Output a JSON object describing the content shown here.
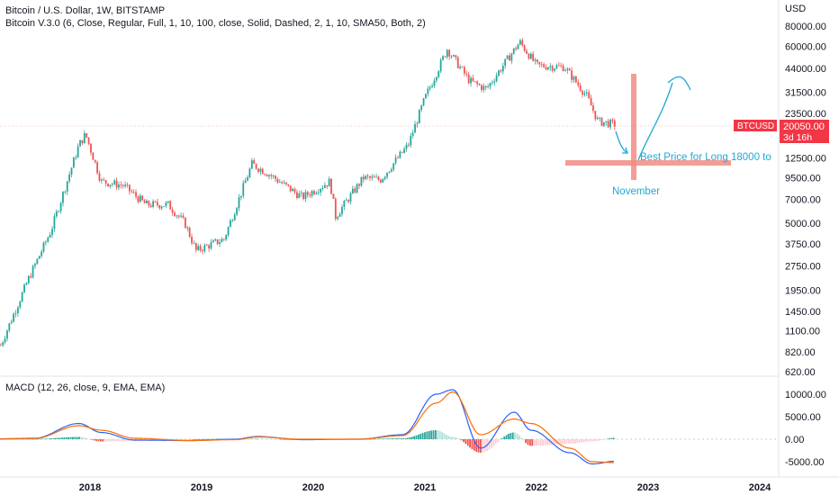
{
  "header": {
    "title": "Bitcoin / U.S. Dollar, 1W, BITSTAMP",
    "indicator": "Bitcoin V.3.0 (6, Close, Regular, Full, 1, 10, 100, close, Solid, Dashed, 2, 1, 10, SMA50, Both, 2)"
  },
  "price_axis": {
    "unit": "USD",
    "ticks": [
      "80000.00",
      "60000.00",
      "44000.00",
      "31500.00",
      "23500.00",
      "12500.00",
      "9500.00",
      "7000.00",
      "5000.00",
      "3750.00",
      "2750.00",
      "1950.00",
      "1450.00",
      "1100.00",
      "820.00",
      "620.00"
    ],
    "tick_values": [
      80000,
      60000,
      44000,
      31500,
      23500,
      12500,
      9500,
      7000,
      5000,
      3750,
      2750,
      1950,
      1450,
      1100,
      820,
      620
    ],
    "scale": "log"
  },
  "time_axis": {
    "ticks": [
      "2018",
      "2019",
      "2020",
      "2021",
      "2022",
      "2023",
      "2024"
    ]
  },
  "last_price": {
    "symbol": "BTCUSD",
    "price": "20050.00",
    "countdown": "3d 16h",
    "color": "#f23645"
  },
  "annotations": {
    "best_price": "Best Price for Long 18000 to",
    "month": "November",
    "line_color": "#f28b82",
    "arrow_color": "#21a7d6"
  },
  "macd": {
    "label": "MACD (12, 26, close, 9, EMA, EMA)",
    "ticks": [
      "10000.00",
      "5000.00",
      "0.00",
      "-5000.00"
    ],
    "tick_values": [
      10000,
      5000,
      0,
      -5000
    ],
    "macd_color": "#2962ff",
    "signal_color": "#ff6d00"
  },
  "colors": {
    "up": "#26a69a",
    "down": "#ef5350"
  },
  "chart_data": {
    "type": "candlestick",
    "symbol": "BTCUSD",
    "interval": "1W",
    "x": [
      2017.2,
      2017.45,
      2017.65,
      2017.9,
      2017.96,
      2018.1,
      2018.3,
      2018.5,
      2018.7,
      2018.85,
      2018.95,
      2019.2,
      2019.45,
      2019.6,
      2019.9,
      2020.15,
      2020.2,
      2020.45,
      2020.6,
      2020.85,
      2021.0,
      2021.2,
      2021.4,
      2021.55,
      2021.85,
      2022.0,
      2022.25,
      2022.45,
      2022.55,
      2022.7
    ],
    "price": [
      900,
      2300,
      4500,
      15000,
      17500,
      9000,
      8500,
      6500,
      6500,
      5000,
      3400,
      4000,
      11500,
      10000,
      7200,
      9000,
      5500,
      9500,
      9200,
      15000,
      29000,
      58000,
      37000,
      33000,
      64000,
      46000,
      45000,
      30000,
      21000,
      20050
    ],
    "macd_values": {
      "x": [
        2017.0,
        2017.5,
        2017.9,
        2018.1,
        2018.4,
        2018.9,
        2019.3,
        2019.5,
        2019.9,
        2020.4,
        2020.8,
        2021.1,
        2021.25,
        2021.5,
        2021.8,
        2021.95,
        2022.3,
        2022.5,
        2022.7
      ],
      "macd": [
        0,
        200,
        3500,
        1500,
        -200,
        -300,
        0,
        600,
        -100,
        0,
        1000,
        10000,
        11000,
        -2000,
        6000,
        2000,
        -3000,
        -5500,
        -4900
      ],
      "signal": [
        0,
        150,
        3000,
        2000,
        200,
        -300,
        -100,
        500,
        0,
        0,
        800,
        8000,
        10500,
        1000,
        4500,
        3500,
        -2000,
        -5000,
        -5200
      ]
    }
  }
}
